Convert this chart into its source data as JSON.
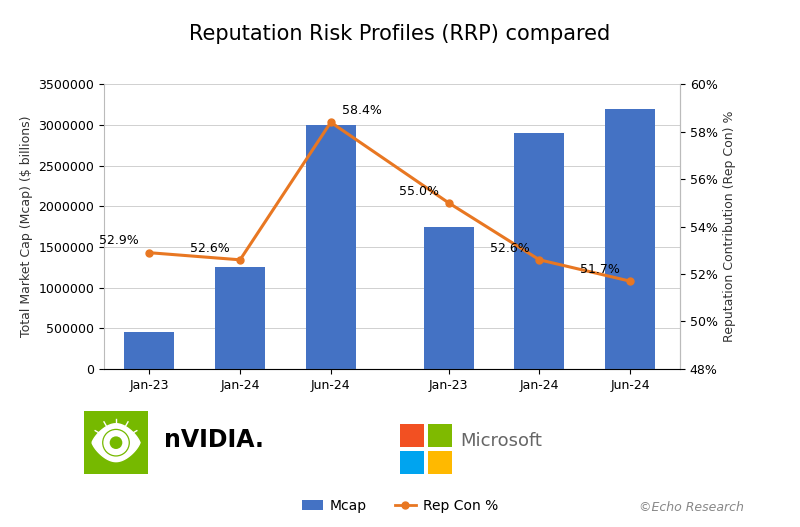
{
  "title": "Reputation Risk Profiles (RRP) compared",
  "categories": [
    "Jan-23",
    "Jan-24",
    "Jun-24",
    "Jan-23",
    "Jan-24",
    "Jun-24"
  ],
  "mcap_values": [
    450000,
    1250000,
    3000000,
    1750000,
    2900000,
    3200000
  ],
  "rep_con_values": [
    52.9,
    52.6,
    58.4,
    55.0,
    52.6,
    51.7
  ],
  "bar_color": "#4472c4",
  "line_color": "#e87722",
  "ylabel_left": "Total Market Cap (Mcap) ($ billions)",
  "ylabel_right": "Reputation Contribution (Rep Con) %",
  "ylim_left": [
    0,
    3500000
  ],
  "ylim_right": [
    48,
    60
  ],
  "yticks_left": [
    0,
    500000,
    1000000,
    1500000,
    2000000,
    2500000,
    3000000,
    3500000
  ],
  "ytick_left_labels": [
    "0",
    "500000",
    "1000000",
    "1500000",
    "2000000",
    "2500000",
    "3000000",
    "3500000"
  ],
  "yticks_right": [
    48,
    50,
    52,
    54,
    56,
    58,
    60
  ],
  "ytick_right_labels": [
    "48%",
    "50%",
    "52%",
    "54%",
    "56%",
    "58%",
    "60%"
  ],
  "background_color": "#ffffff",
  "grid_color": "#d0d0d0",
  "legend_mcap_label": "Mcap",
  "legend_rep_label": "Rep Con %",
  "watermark": "©Echo Research",
  "nvidia_label": "nVIDIA.",
  "microsoft_label": "Microsoft",
  "microsoft_text_color": "#666666",
  "nvidia_green": "#76b900",
  "ms_red": "#f25022",
  "ms_green": "#7fba00",
  "ms_blue": "#00a4ef",
  "ms_yellow": "#ffb900",
  "title_fontsize": 15,
  "axis_label_fontsize": 9,
  "tick_fontsize": 9,
  "annotation_fontsize": 9
}
